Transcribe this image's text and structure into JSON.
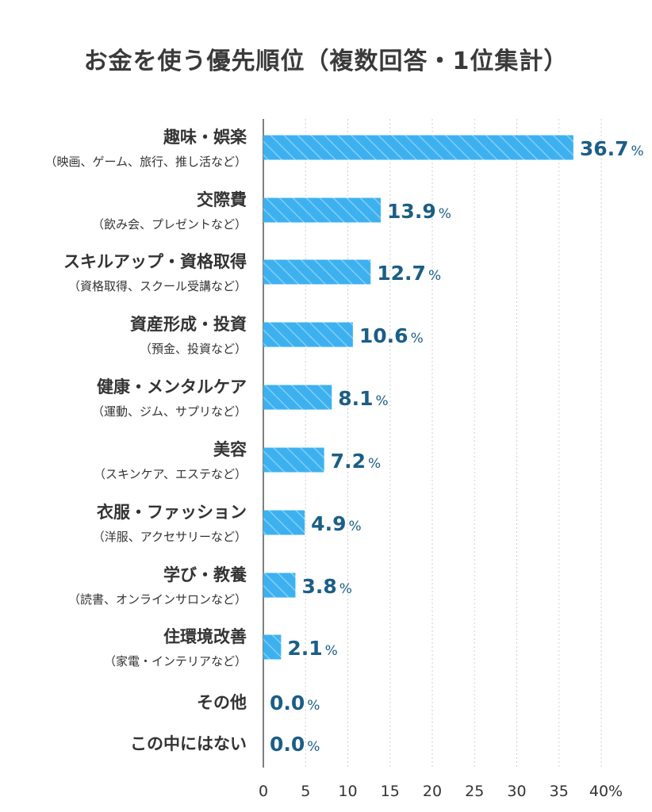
{
  "title": "お金を使う優先順位（複数回答・1位集計）",
  "colors": {
    "bar": "#3db1f0",
    "hatch": "#8fd3f7",
    "value": "#1b5e86",
    "label": "#333333",
    "sub": "#333333",
    "grid": "#cfcfcf",
    "axis": "#555555"
  },
  "chart_data": {
    "type": "bar",
    "orientation": "horizontal",
    "title": "お金を使う優先順位（複数回答・1位集計）",
    "categories": [
      "趣味・娯楽",
      "交際費",
      "スキルアップ・資格取得",
      "資産形成・投資",
      "健康・メンタルケア",
      "美容",
      "衣服・ファッション",
      "学び・教養",
      "住環境改善",
      "その他",
      "この中にはない"
    ],
    "subcategories": [
      "（映画、ゲーム、旅行、推し活など）",
      "（飲み会、プレゼントなど）",
      "（資格取得、スクール受講など）",
      "（預金、投資など）",
      "（運動、ジム、サプリなど）",
      "（スキンケア、エステなど）",
      "（洋服、アクセサリーなど）",
      "（読書、オンラインサロンなど）",
      "（家電・インテリアなど）",
      "",
      ""
    ],
    "values": [
      36.7,
      13.9,
      12.7,
      10.6,
      8.1,
      7.2,
      4.9,
      3.8,
      2.1,
      0.0,
      0.0
    ],
    "value_labels": [
      "36.7",
      "13.9",
      "12.7",
      "10.6",
      "8.1",
      "7.2",
      "4.9",
      "3.8",
      "2.1",
      "0.0",
      "0.0"
    ],
    "value_unit": "%",
    "x_ticks": [
      0,
      5,
      10,
      15,
      20,
      25,
      30,
      35,
      40
    ],
    "x_tick_labels": [
      "0",
      "5",
      "10",
      "15",
      "20",
      "25",
      "30",
      "35",
      "40%"
    ],
    "xlim": [
      0,
      40
    ],
    "grid": true
  }
}
